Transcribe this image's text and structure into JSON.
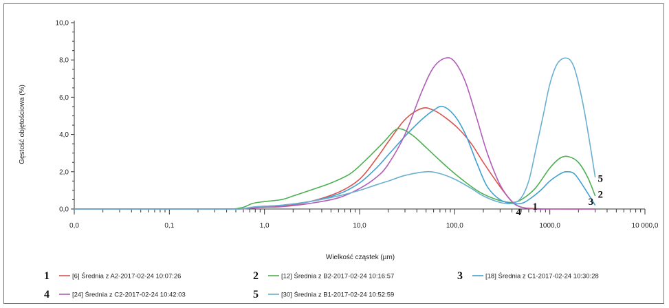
{
  "chart_data": {
    "type": "line",
    "title": "",
    "xlabel": "Wielkość cząstek (µm)",
    "ylabel": "Gęstość objętościowa (%)",
    "x_scale": "log",
    "xlim": [
      0.01,
      10000
    ],
    "ylim": [
      0,
      10
    ],
    "grid": false,
    "legend_position": "bottom",
    "x_ticks": [
      {
        "value": 0.01,
        "label": "0,0"
      },
      {
        "value": 0.1,
        "label": "0,1"
      },
      {
        "value": 1,
        "label": "1,0"
      },
      {
        "value": 10,
        "label": "10,0"
      },
      {
        "value": 100,
        "label": "100,0"
      },
      {
        "value": 1000,
        "label": "1000,0"
      },
      {
        "value": 10000,
        "label": "10 000,0"
      }
    ],
    "y_ticks": [
      {
        "value": 0,
        "label": "0,0"
      },
      {
        "value": 2,
        "label": "2,0"
      },
      {
        "value": 4,
        "label": "4,0"
      },
      {
        "value": 6,
        "label": "6,0"
      },
      {
        "value": 8,
        "label": "8,0"
      },
      {
        "value": 10,
        "label": "10,0"
      }
    ],
    "series": [
      {
        "name": "[6] Średnia z A2-2017-02-24 10:07:26",
        "number": "1",
        "color": "#d9534f",
        "x": [
          0.01,
          0.3,
          0.55,
          0.75,
          1.0,
          1.5,
          3,
          6,
          10,
          15,
          20,
          30,
          45,
          60,
          80,
          110,
          150,
          200,
          300,
          400,
          500,
          700,
          1000,
          3000
        ],
        "y": [
          0.0,
          0.0,
          0.0,
          0.05,
          0.1,
          0.15,
          0.4,
          0.9,
          1.6,
          2.7,
          3.6,
          4.8,
          5.4,
          5.3,
          4.9,
          4.3,
          3.5,
          2.5,
          1.2,
          0.4,
          0.1,
          0.02,
          0.0,
          0.0
        ],
        "end_label": {
          "x": 700,
          "y": 0.15
        }
      },
      {
        "name": "[12] Średnia z B2-2017-02-24 10:16:57",
        "number": "2",
        "color": "#4caf50",
        "x": [
          0.01,
          0.3,
          0.55,
          0.75,
          1.0,
          1.5,
          2,
          3,
          5,
          8,
          12,
          18,
          25,
          35,
          50,
          70,
          100,
          150,
          200,
          300,
          400,
          500,
          700,
          1000,
          1300,
          1600,
          2000,
          2500,
          3000
        ],
        "y": [
          0.0,
          0.0,
          0.05,
          0.3,
          0.4,
          0.5,
          0.7,
          1.0,
          1.4,
          1.9,
          2.7,
          3.6,
          4.3,
          4.0,
          3.3,
          2.6,
          1.9,
          1.2,
          0.8,
          0.45,
          0.35,
          0.5,
          1.1,
          2.2,
          2.75,
          2.8,
          2.5,
          1.7,
          0.7
        ],
        "end_label": {
          "x": 3400,
          "y": 0.8
        }
      },
      {
        "name": "[18] Średnia z C1-2017-02-24 10:30:28",
        "number": "3",
        "color": "#3fa0cf",
        "x": [
          0.01,
          0.3,
          0.55,
          0.75,
          1.0,
          1.5,
          3,
          6,
          10,
          15,
          20,
          30,
          45,
          60,
          75,
          100,
          130,
          170,
          220,
          300,
          400,
          500,
          600,
          800,
          1000,
          1300,
          1500,
          1800,
          2200,
          3000
        ],
        "y": [
          0.0,
          0.0,
          0.0,
          0.1,
          0.15,
          0.2,
          0.4,
          0.8,
          1.4,
          2.2,
          2.9,
          3.9,
          4.8,
          5.3,
          5.5,
          5.0,
          4.0,
          2.5,
          1.2,
          0.5,
          0.3,
          0.3,
          0.5,
          1.0,
          1.5,
          1.9,
          2.0,
          1.9,
          1.3,
          0.2
        ],
        "end_label": {
          "x": 2700,
          "y": 0.4
        }
      },
      {
        "name": "[24] Średnia z C2-2017-02-24 10:42:03",
        "number": "4",
        "color": "#b05cb8",
        "x": [
          0.01,
          0.3,
          0.55,
          0.75,
          1.0,
          1.5,
          3,
          6,
          10,
          15,
          20,
          30,
          45,
          60,
          80,
          100,
          130,
          170,
          220,
          300,
          400,
          500,
          700,
          1000,
          3000
        ],
        "y": [
          0.0,
          0.0,
          0.0,
          0.05,
          0.1,
          0.12,
          0.3,
          0.6,
          1.1,
          1.7,
          2.4,
          4.0,
          6.3,
          7.6,
          8.1,
          7.9,
          6.8,
          4.9,
          3.0,
          1.3,
          0.4,
          0.1,
          0.0,
          0.0,
          0.0
        ],
        "end_label": {
          "x": 470,
          "y": -0.15
        }
      },
      {
        "name": "[30] Średnia z B1-2017-02-24 10:52:59",
        "number": "5",
        "color": "#6aafcf",
        "x": [
          0.01,
          0.3,
          0.55,
          0.75,
          1.0,
          1.5,
          3,
          6,
          10,
          15,
          20,
          30,
          50,
          70,
          100,
          150,
          200,
          300,
          400,
          500,
          600,
          700,
          850,
          1000,
          1200,
          1500,
          1800,
          2200,
          2600,
          3000
        ],
        "y": [
          0.0,
          0.0,
          0.0,
          0.1,
          0.15,
          0.2,
          0.4,
          0.7,
          1.0,
          1.3,
          1.5,
          1.8,
          2.0,
          1.9,
          1.6,
          1.1,
          0.7,
          0.35,
          0.3,
          0.6,
          1.5,
          3.0,
          5.0,
          6.7,
          7.8,
          8.1,
          7.6,
          5.8,
          3.7,
          1.7
        ],
        "end_label": {
          "x": 3400,
          "y": 1.65
        }
      }
    ]
  }
}
